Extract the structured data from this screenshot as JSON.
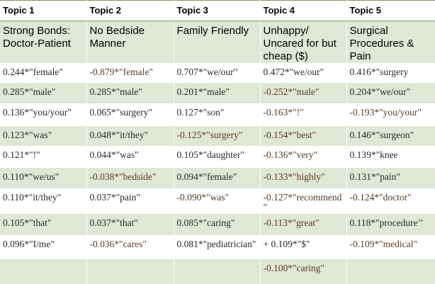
{
  "table": {
    "headers": [
      "Topic 1",
      "Topic 2",
      "Topic 3",
      "Topic 4",
      "Topic 5"
    ],
    "names": [
      "Strong Bonds: Doctor-Patient",
      "No Bedside Manner",
      "Family Friendly",
      "Unhappy/ Uncared for but cheap ($)",
      "Surgical Procedures & Pain"
    ],
    "rows": [
      [
        "0.244*\"female\"",
        "-0.879*\"female\"",
        "0.707*\"we/our'’",
        "0.472*\"we/our\"",
        "0.416*\"surgery"
      ],
      [
        "0.285*\"male\"",
        "0.285*\"male\"",
        "0.201*\"male\"",
        "-0.252*\"male\"",
        "0.204*\"we/our\""
      ],
      [
        "0.136*\"you/your\"",
        "0.065*\"surgery\"",
        "0.127*\"son\"",
        "-0.163*\"!\"",
        "-0.193*\"you/your\""
      ],
      [
        "0.123*\"was\"",
        "0.048*\"it/they\"",
        "-0.125*\"surgery\"",
        "-0.154*\"best\"",
        "0.146*\"surgeon\""
      ],
      [
        "0.121*\"!\"",
        "0.044*\"was\"",
        "0.105*\"daughter\"",
        "-0.136*\"very\"",
        "0.139*\"knee"
      ],
      [
        "0.110*\"we/us\"",
        "-0.038*\"bedside\"",
        "0.094*\"female\"",
        "-0.133*\"highly\"",
        "0.131*\"pain\""
      ],
      [
        "0.110*\"it/they\"",
        "0.037*\"pain\"",
        "-0.090*\"was\"",
        "-0.127*\"recommend\"",
        "-0.124*\"doctor\""
      ],
      [
        "0.105*\"that\"",
        "0.037*\"that\"",
        "0.085*\"caring\"",
        "-0.113*\"great\"",
        "0.118*\"procedure’’"
      ],
      [
        "0.096*\"I/me\"",
        "-0.036*\"cares\"",
        "0.081*\"pediatrician\"",
        "+ 0.109*\"$\"",
        "-0.109*\"medical\""
      ],
      [
        "",
        "",
        "",
        "-0.100*\"caring\"",
        ""
      ]
    ]
  }
}
